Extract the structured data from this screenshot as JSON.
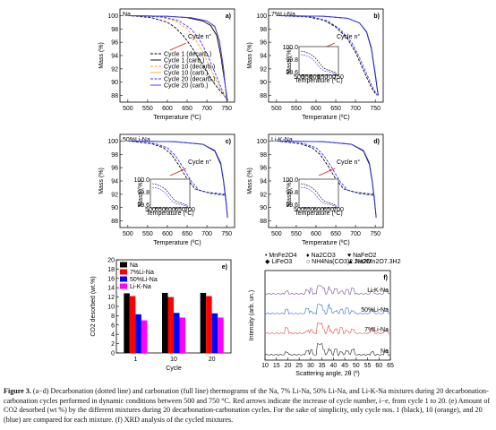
{
  "chart_data": [
    {
      "type": "line",
      "panel": "a)",
      "sample": "Na",
      "xlabel": "Temperature (ºC)",
      "ylabel": "Mass (%)",
      "xlim": [
        480,
        770
      ],
      "ylim": [
        87,
        101
      ],
      "xticks": [
        500,
        550,
        600,
        650,
        700,
        750
      ],
      "yticks": [
        88,
        90,
        92,
        94,
        96,
        98,
        100
      ],
      "annotation": "Cycle n°",
      "legend": [
        "Cycle 1 (decarb.)",
        "Cycle 1 (carb.)",
        "Cycle 10 (decarb.)",
        "Cycle 10 (carb.)",
        "Cycle 20 (decarb.)",
        "Cycle 20 (carb.)"
      ],
      "series": [
        {
          "name": "Cycle 1 (decarb.)",
          "color": "#000000",
          "dashed": true,
          "x": [
            500,
            560,
            600,
            620,
            640,
            660,
            680,
            700,
            720,
            740
          ],
          "y": [
            100,
            99.7,
            99,
            98.2,
            97,
            95.4,
            93.5,
            91.5,
            89.7,
            88.2
          ]
        },
        {
          "name": "Cycle 1 (carb.)",
          "color": "#000000",
          "dashed": false,
          "x": [
            500,
            600,
            650,
            690,
            710,
            725,
            735,
            745,
            752
          ],
          "y": [
            100,
            99.9,
            99.7,
            99.2,
            98.5,
            97,
            94,
            90,
            87.2
          ]
        },
        {
          "name": "Cycle 10 (decarb.)",
          "color": "#f5a623",
          "dashed": true,
          "x": [
            500,
            580,
            620,
            650,
            670,
            690,
            710,
            730,
            745
          ],
          "y": [
            100,
            99.8,
            99.2,
            98,
            96.5,
            94.5,
            92,
            89.5,
            87.8
          ]
        },
        {
          "name": "Cycle 10 (carb.)",
          "color": "#f5a623",
          "dashed": false,
          "x": [
            500,
            600,
            660,
            700,
            720,
            732,
            742,
            750
          ],
          "y": [
            100,
            99.9,
            99.7,
            99.2,
            98.3,
            96,
            92,
            87.5
          ]
        },
        {
          "name": "Cycle 20 (decarb.)",
          "color": "#3333ff",
          "dashed": true,
          "x": [
            500,
            590,
            630,
            660,
            680,
            700,
            720,
            737,
            748
          ],
          "y": [
            100,
            99.8,
            99.2,
            98,
            96.5,
            94.3,
            91.5,
            89,
            87.5
          ]
        },
        {
          "name": "Cycle 20 (carb.)",
          "color": "#3333ff",
          "dashed": false,
          "x": [
            500,
            600,
            660,
            700,
            720,
            732,
            742,
            750
          ],
          "y": [
            100,
            99.9,
            99.7,
            99.2,
            98.4,
            96.2,
            92.2,
            87.4
          ]
        }
      ]
    },
    {
      "type": "line",
      "panel": "b)",
      "sample": "7%Li-Na",
      "xlabel": "Temperature (ºC)",
      "ylabel": "Mass (%)",
      "xlim": [
        480,
        770
      ],
      "ylim": [
        87,
        101
      ],
      "xticks": [
        500,
        550,
        600,
        650,
        700,
        750
      ],
      "yticks": [
        88,
        90,
        92,
        94,
        96,
        98,
        100
      ],
      "annotation": "Cycle n°",
      "inset": {
        "xlabel": "Temperature (ºC)",
        "ylabel": "Mass (%)",
        "xticks": [
          500,
          550,
          600,
          650,
          700,
          750
        ],
        "yticks": [
          99.6,
          99.8,
          100.0
        ]
      },
      "series": [
        {
          "name": "Cycle 1 (decarb.)",
          "color": "#000000",
          "dashed": true,
          "x": [
            500,
            580,
            620,
            650,
            680,
            700,
            720,
            740,
            750
          ],
          "y": [
            100,
            99.8,
            99.3,
            98.3,
            96.5,
            94.5,
            91.8,
            89.2,
            88.3
          ]
        },
        {
          "name": "Cycle 1 (carb.)",
          "color": "#000000",
          "dashed": false,
          "x": [
            500,
            620,
            680,
            710,
            728,
            740,
            750,
            757
          ],
          "y": [
            100,
            99.9,
            99.6,
            98.9,
            97.5,
            95,
            91,
            88
          ]
        },
        {
          "name": "Cycle 20 (decarb.)",
          "color": "#3333ff",
          "dashed": true,
          "x": [
            500,
            590,
            630,
            660,
            690,
            710,
            730,
            745,
            755
          ],
          "y": [
            100,
            99.8,
            99.2,
            98,
            96,
            93.7,
            91,
            89,
            88
          ]
        },
        {
          "name": "Cycle 20 (carb.)",
          "color": "#3333ff",
          "dashed": false,
          "x": [
            500,
            620,
            680,
            710,
            728,
            740,
            750,
            757
          ],
          "y": [
            100,
            99.9,
            99.6,
            98.9,
            97.6,
            95.2,
            91.3,
            88.2
          ]
        }
      ]
    },
    {
      "type": "line",
      "panel": "c)",
      "sample": "50%Li-Na",
      "xlabel": "Temperature (ºC)",
      "ylabel": "Mass (%)",
      "xlim": [
        480,
        770
      ],
      "ylim": [
        87,
        101
      ],
      "xticks": [
        500,
        550,
        600,
        650,
        700,
        750
      ],
      "yticks": [
        88,
        90,
        92,
        94,
        96,
        98,
        100
      ],
      "annotation": "Cycle n°",
      "inset": {
        "xlabel": "Temperature (ºC)",
        "ylabel": "Mass (%)",
        "xticks": [
          500,
          550,
          600,
          650,
          700
        ],
        "yticks": [
          99.6,
          99.8,
          100.0
        ]
      },
      "series": [
        {
          "name": "Cycle 1 (decarb.)",
          "color": "#000000",
          "dashed": true,
          "x": [
            500,
            560,
            590,
            610,
            630,
            650,
            670,
            700,
            730,
            745
          ],
          "y": [
            100,
            99.6,
            99,
            98,
            96.3,
            94.3,
            92.8,
            92.3,
            92.1,
            92
          ]
        },
        {
          "name": "Cycle 1 (carb.)",
          "color": "#000000",
          "dashed": false,
          "x": [
            500,
            620,
            690,
            720,
            735,
            742,
            748,
            752
          ],
          "y": [
            100,
            99.9,
            99.5,
            98.5,
            96.5,
            94,
            91,
            88.5
          ]
        },
        {
          "name": "Cycle 20 (decarb.)",
          "color": "#3333ff",
          "dashed": true,
          "x": [
            500,
            570,
            600,
            620,
            640,
            660,
            680,
            710,
            735,
            748
          ],
          "y": [
            100,
            99.6,
            99,
            97.8,
            96,
            94,
            92.6,
            92.1,
            91.9,
            91.8
          ]
        },
        {
          "name": "Cycle 20 (carb.)",
          "color": "#3333ff",
          "dashed": false,
          "x": [
            500,
            620,
            690,
            720,
            735,
            742,
            748,
            752
          ],
          "y": [
            100,
            99.9,
            99.5,
            98.6,
            96.7,
            94.2,
            91.3,
            88.7
          ]
        }
      ]
    },
    {
      "type": "line",
      "panel": "d)",
      "sample": "Li-K-Na",
      "xlabel": "Temperature (ºC)",
      "ylabel": "Mass (%)",
      "xlim": [
        480,
        770
      ],
      "ylim": [
        87,
        101
      ],
      "xticks": [
        500,
        550,
        600,
        650,
        700,
        750
      ],
      "yticks": [
        88,
        90,
        92,
        94,
        96,
        98,
        100
      ],
      "annotation": "Cycle n°",
      "inset": {
        "xlabel": "Temperature (ºC)",
        "ylabel": "Mass (%)",
        "xticks": [
          500,
          550,
          600,
          650,
          700
        ],
        "yticks": [
          99.6,
          99.8,
          100.0
        ]
      },
      "series": [
        {
          "name": "Cycle 1 (decarb.)",
          "color": "#000000",
          "dashed": true,
          "x": [
            500,
            560,
            590,
            610,
            630,
            650,
            670,
            700,
            730,
            745
          ],
          "y": [
            100,
            99.6,
            99,
            98,
            96.3,
            94.3,
            92.8,
            92.3,
            92.1,
            92
          ]
        },
        {
          "name": "Cycle 1 (carb.)",
          "color": "#000000",
          "dashed": false,
          "x": [
            500,
            620,
            690,
            720,
            735,
            742,
            748,
            752
          ],
          "y": [
            100,
            99.9,
            99.5,
            98.5,
            96.5,
            94,
            91,
            88.5
          ]
        },
        {
          "name": "Cycle 20 (decarb.)",
          "color": "#3333ff",
          "dashed": true,
          "x": [
            500,
            570,
            600,
            620,
            640,
            660,
            680,
            710,
            735,
            748
          ],
          "y": [
            100,
            99.6,
            99,
            97.8,
            96,
            94,
            92.6,
            92.1,
            91.9,
            91.8
          ]
        },
        {
          "name": "Cycle 20 (carb.)",
          "color": "#3333ff",
          "dashed": false,
          "x": [
            500,
            620,
            690,
            720,
            735,
            742,
            748,
            752
          ],
          "y": [
            100,
            99.9,
            99.5,
            98.6,
            96.7,
            94.2,
            91.3,
            88.7
          ]
        }
      ]
    },
    {
      "type": "bar",
      "panel": "e)",
      "xlabel": "Cycle",
      "ylabel": "CO2 desorbed (wt.%)",
      "categories": [
        "1",
        "10",
        "20"
      ],
      "ylim": [
        0,
        20
      ],
      "yticks": [
        0,
        2,
        4,
        6,
        8,
        10,
        12,
        14,
        16,
        18,
        20
      ],
      "series": [
        {
          "name": "Na",
          "color": "#000000",
          "values": [
            12.8,
            12.9,
            12.9
          ]
        },
        {
          "name": "7%Li-Na",
          "color": "#ff0000",
          "values": [
            12.2,
            12.0,
            12.2
          ]
        },
        {
          "name": "50%Li-Na",
          "color": "#0000ff",
          "values": [
            8.3,
            8.6,
            8.5
          ]
        },
        {
          "name": "Li-K-Na",
          "color": "#ff00ff",
          "values": [
            7.0,
            7.6,
            7.6
          ]
        }
      ]
    },
    {
      "type": "line",
      "panel": "f)",
      "xlabel": "Scattering angle, 2θ (º)",
      "ylabel": "Intensity (arb. un.)",
      "xlim": [
        10,
        65
      ],
      "xticks": [
        10,
        15,
        20,
        25,
        30,
        35,
        40,
        45,
        50,
        55,
        60,
        65
      ],
      "legend_top": [
        "• MnFe2O4",
        "♦ Na2CO3",
        "♥ NaFeO2",
        "◆ LiFeO3",
        "○ NH4Na(CO3)2.2H2O",
        "▲ Na2Mn2O7.3H2O"
      ],
      "traces": [
        "Li-K-Na",
        "50%Li-Na",
        "7%Li-Na",
        "Na"
      ],
      "trace_colors": [
        "#7a4a9a",
        "#2a6ad8",
        "#e64040",
        "#222222"
      ]
    }
  ],
  "caption": {
    "label": "Figure 3.",
    "text": " (a−d) Decarbonation (dotted line) and carbonation (full line) thermograms of the Na, 7% Li-Na, 50% Li-Na, and Li-K-Na mixtures during 20 decarbonation-carbonation cycles performed in dynamic conditions between 500 and 750 °C. Red arrows indicate the increase of cycle number, i−e, from cycle 1 to 20. (e) Amount of CO2 desorbed (wt %) by the different mixtures during 20 decarbonation-carbonation cycles. For the sake of simplicity, only cycle nos. 1 (black), 10 (orange), and 20 (blue) are compared for each mixture. (f) XRD analysis of the cycled mixtures."
  }
}
